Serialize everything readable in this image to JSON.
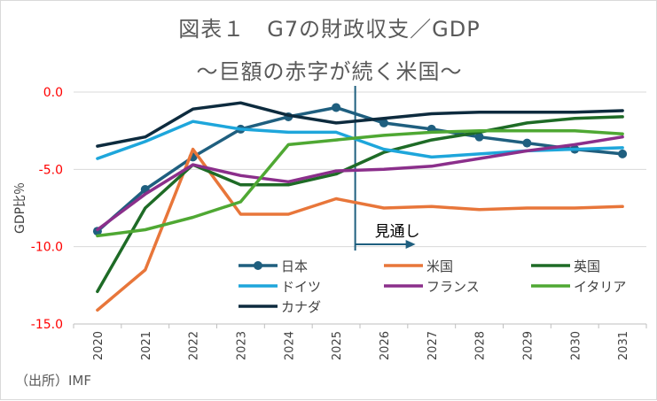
{
  "header": {
    "title_line1": "図表１　G7の財政収支／GDP",
    "title_line2": "～巨額の赤字が続く米国～"
  },
  "source": "（出所）IMF",
  "annotation": {
    "label": "見通し",
    "divider_after": "2025"
  },
  "colors": {
    "japan": "#1f5f7f",
    "usa": "#e8763a",
    "uk": "#1e6b26",
    "germany": "#1ea6db",
    "france": "#8b2f8b",
    "italy": "#4fa833",
    "canada": "#0d2b3e",
    "ytick": "#ff0000"
  },
  "chart_data": {
    "type": "line",
    "title": "図表１　G7の財政収支／GDP",
    "subtitle": "～巨額の赤字が続く米国～",
    "ylabel": "GDP比％",
    "xlabel": "",
    "ylim": [
      -15,
      0
    ],
    "yticks": [
      "0.0",
      "-5.0",
      "-10.0",
      "-15.0"
    ],
    "ytick_values": [
      0,
      -5,
      -10,
      -15
    ],
    "x": [
      "2020",
      "2021",
      "2022",
      "2023",
      "2024",
      "2025",
      "2026",
      "2027",
      "2028",
      "2029",
      "2030",
      "2031"
    ],
    "grid": true,
    "legend": "inside-lower-middle",
    "series": [
      {
        "name": "日本",
        "key": "japan",
        "marker": true,
        "values": [
          -9.0,
          -6.3,
          -4.2,
          -2.4,
          -1.6,
          -1.0,
          -2.0,
          -2.4,
          -2.9,
          -3.3,
          -3.7,
          -4.0
        ]
      },
      {
        "name": "米国",
        "key": "usa",
        "marker": false,
        "values": [
          -14.1,
          -11.5,
          -3.7,
          -7.9,
          -7.9,
          -6.9,
          -7.5,
          -7.4,
          -7.6,
          -7.5,
          -7.5,
          -7.4
        ]
      },
      {
        "name": "英国",
        "key": "uk",
        "marker": false,
        "values": [
          -12.9,
          -7.5,
          -4.7,
          -6.0,
          -6.0,
          -5.3,
          -3.9,
          -3.1,
          -2.6,
          -2.0,
          -1.7,
          -1.6
        ]
      },
      {
        "name": "ドイツ",
        "key": "germany",
        "marker": false,
        "values": [
          -4.3,
          -3.2,
          -1.9,
          -2.4,
          -2.6,
          -2.6,
          -3.7,
          -4.2,
          -4.0,
          -3.8,
          -3.7,
          -3.6
        ]
      },
      {
        "name": "フランス",
        "key": "france",
        "marker": false,
        "values": [
          -8.9,
          -6.6,
          -4.7,
          -5.4,
          -5.8,
          -5.1,
          -5.0,
          -4.8,
          -4.3,
          -3.8,
          -3.4,
          -2.9
        ]
      },
      {
        "name": "イタリア",
        "key": "italy",
        "marker": false,
        "values": [
          -9.3,
          -8.9,
          -8.1,
          -7.1,
          -3.4,
          -3.1,
          -2.8,
          -2.6,
          -2.5,
          -2.5,
          -2.5,
          -2.7
        ]
      },
      {
        "name": "カナダ",
        "key": "canada",
        "marker": false,
        "values": [
          -3.5,
          -2.9,
          -1.1,
          -0.7,
          -1.5,
          -2.0,
          -1.7,
          -1.4,
          -1.3,
          -1.3,
          -1.3,
          -1.2
        ]
      }
    ]
  }
}
